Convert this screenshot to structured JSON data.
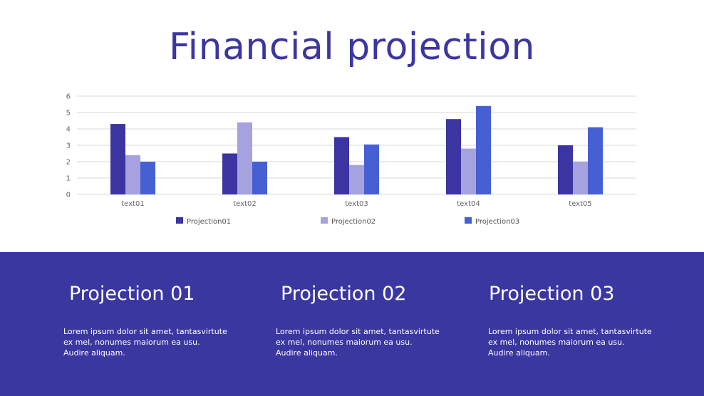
{
  "title": "Financial projection",
  "chart_data": {
    "type": "bar",
    "categories": [
      "text01",
      "text02",
      "text03",
      "text04",
      "text05"
    ],
    "series": [
      {
        "name": "Projection01",
        "values": [
          4.3,
          2.5,
          3.5,
          4.6,
          3.0
        ],
        "color": "#3a35a0"
      },
      {
        "name": "Projection02",
        "values": [
          2.4,
          4.4,
          1.8,
          2.8,
          2.0
        ],
        "color": "#a6a2df"
      },
      {
        "name": "Projection03",
        "values": [
          2.0,
          2.0,
          3.05,
          5.4,
          4.1
        ],
        "color": "#4660d4"
      }
    ],
    "ylim": [
      0,
      6
    ],
    "yticks": [
      0,
      1,
      2,
      3,
      4,
      5,
      6
    ],
    "grid": true,
    "legend_position": "bottom"
  },
  "columns": [
    {
      "heading": "Projection 01",
      "text": "Lorem ipsum dolor sit amet, tantasvirtute ex mel, nonumes maiorum ea usu. Audire aliquam."
    },
    {
      "heading": "Projection 02",
      "text": "Lorem ipsum dolor sit amet, tantasvirtute ex mel, nonumes maiorum ea usu. Audire aliquam."
    },
    {
      "heading": "Projection 03",
      "text": "Lorem ipsum dolor sit amet, tantasvirtute ex mel, nonumes maiorum ea usu. Audire aliquam."
    }
  ],
  "colors": {
    "accent": "#3a37a0",
    "title": "#3c36a0",
    "grid": "#d9d9d9"
  }
}
